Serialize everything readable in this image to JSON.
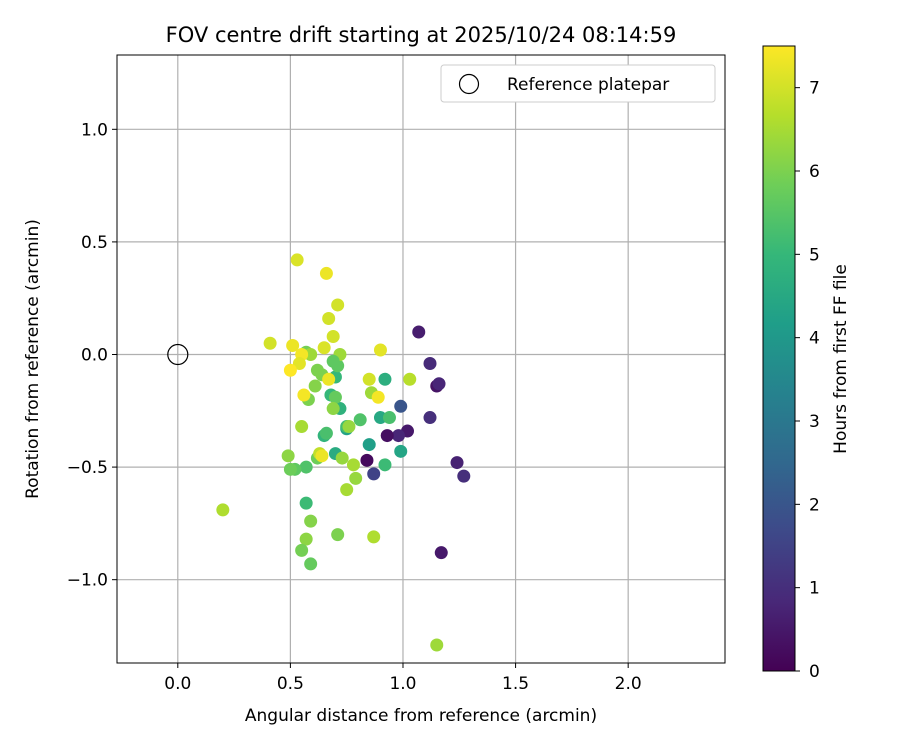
{
  "chart_data": {
    "type": "scatter",
    "title": "FOV centre drift starting at 2025/10/24 08:14:59",
    "xlabel": "Angular distance from reference (arcmin)",
    "ylabel": "Rotation from reference (arcmin)",
    "xlim": [
      -0.27,
      2.43
    ],
    "ylim": [
      -1.37,
      1.33
    ],
    "xticks": [
      0.0,
      0.5,
      1.0,
      1.5,
      2.0
    ],
    "xtick_labels": [
      "0.0",
      "0.5",
      "1.0",
      "1.5",
      "2.0"
    ],
    "yticks": [
      1.0,
      0.5,
      0.0,
      -0.5,
      -1.0
    ],
    "ytick_labels": [
      "1.0",
      "0.5",
      "0.0",
      "−0.5",
      "−1.0"
    ],
    "grid": true,
    "legend": {
      "position": "top-right",
      "entries": [
        "Reference platepar"
      ]
    },
    "reference_point": {
      "x": 0.0,
      "y": 0.0,
      "label": "Reference platepar"
    },
    "colorbar": {
      "label": "Hours from first FF file",
      "min": 0,
      "max": 7.5,
      "ticks": [
        0,
        1,
        2,
        3,
        4,
        5,
        6,
        7
      ],
      "tick_labels": [
        "0",
        "1",
        "2",
        "3",
        "4",
        "5",
        "6",
        "7"
      ],
      "colormap_stops": [
        "#440154",
        "#482878",
        "#3e4989",
        "#31688e",
        "#26828e",
        "#1f9e89",
        "#35b779",
        "#6ece58",
        "#b5de2b",
        "#fde725"
      ]
    },
    "points": [
      {
        "x": 1.07,
        "y": 0.1,
        "h": 0.6
      },
      {
        "x": 1.12,
        "y": -0.04,
        "h": 0.9
      },
      {
        "x": 1.15,
        "y": -0.14,
        "h": 0.4
      },
      {
        "x": 1.16,
        "y": -0.13,
        "h": 0.8
      },
      {
        "x": 1.12,
        "y": -0.28,
        "h": 1.0
      },
      {
        "x": 1.24,
        "y": -0.48,
        "h": 0.7
      },
      {
        "x": 1.27,
        "y": -0.54,
        "h": 1.0
      },
      {
        "x": 1.17,
        "y": -0.88,
        "h": 0.5
      },
      {
        "x": 1.02,
        "y": -0.34,
        "h": 0.5
      },
      {
        "x": 0.98,
        "y": -0.36,
        "h": 0.8
      },
      {
        "x": 0.93,
        "y": -0.36,
        "h": 0.3
      },
      {
        "x": 0.84,
        "y": -0.47,
        "h": 0.2
      },
      {
        "x": 0.87,
        "y": -0.53,
        "h": 1.5
      },
      {
        "x": 0.99,
        "y": -0.23,
        "h": 2.0
      },
      {
        "x": 0.99,
        "y": -0.43,
        "h": 4.4
      },
      {
        "x": 0.9,
        "y": -0.28,
        "h": 4.5
      },
      {
        "x": 0.92,
        "y": -0.11,
        "h": 4.7
      },
      {
        "x": 0.94,
        "y": -0.28,
        "h": 5.3
      },
      {
        "x": 0.92,
        "y": -0.49,
        "h": 5.1
      },
      {
        "x": 0.85,
        "y": -0.4,
        "h": 4.2
      },
      {
        "x": 0.81,
        "y": -0.29,
        "h": 5.4
      },
      {
        "x": 0.75,
        "y": -0.33,
        "h": 4.3
      },
      {
        "x": 0.75,
        "y": -0.32,
        "h": 5.2
      },
      {
        "x": 0.72,
        "y": -0.24,
        "h": 4.8
      },
      {
        "x": 0.7,
        "y": -0.44,
        "h": 4.6
      },
      {
        "x": 0.7,
        "y": -0.1,
        "h": 5.0
      },
      {
        "x": 0.71,
        "y": -0.05,
        "h": 5.6
      },
      {
        "x": 0.72,
        "y": 0.0,
        "h": 6.4
      },
      {
        "x": 0.69,
        "y": -0.03,
        "h": 5.6
      },
      {
        "x": 0.68,
        "y": -0.18,
        "h": 5.0
      },
      {
        "x": 0.7,
        "y": -0.19,
        "h": 5.7
      },
      {
        "x": 0.69,
        "y": -0.24,
        "h": 6.2
      },
      {
        "x": 0.65,
        "y": -0.36,
        "h": 4.9
      },
      {
        "x": 0.66,
        "y": -0.35,
        "h": 5.3
      },
      {
        "x": 0.62,
        "y": -0.46,
        "h": 5.8
      },
      {
        "x": 0.63,
        "y": -0.44,
        "h": 6.8
      },
      {
        "x": 0.57,
        "y": -0.5,
        "h": 5.4
      },
      {
        "x": 0.52,
        "y": -0.51,
        "h": 5.6
      },
      {
        "x": 0.5,
        "y": -0.51,
        "h": 5.8
      },
      {
        "x": 0.49,
        "y": -0.45,
        "h": 6.2
      },
      {
        "x": 0.57,
        "y": -0.66,
        "h": 5.1
      },
      {
        "x": 0.55,
        "y": -0.32,
        "h": 6.5
      },
      {
        "x": 0.58,
        "y": -0.2,
        "h": 6.0
      },
      {
        "x": 0.61,
        "y": -0.14,
        "h": 6.1
      },
      {
        "x": 0.62,
        "y": -0.07,
        "h": 6.0
      },
      {
        "x": 0.57,
        "y": 0.01,
        "h": 5.9
      },
      {
        "x": 0.59,
        "y": 0.0,
        "h": 6.4
      },
      {
        "x": 0.64,
        "y": -0.09,
        "h": 6.0
      },
      {
        "x": 0.76,
        "y": -0.32,
        "h": 6.3
      },
      {
        "x": 0.73,
        "y": -0.46,
        "h": 6.3
      },
      {
        "x": 0.78,
        "y": -0.49,
        "h": 6.5
      },
      {
        "x": 0.79,
        "y": -0.55,
        "h": 6.3
      },
      {
        "x": 0.75,
        "y": -0.6,
        "h": 6.5
      },
      {
        "x": 0.59,
        "y": -0.74,
        "h": 6.1
      },
      {
        "x": 0.57,
        "y": -0.82,
        "h": 6.2
      },
      {
        "x": 0.55,
        "y": -0.87,
        "h": 5.9
      },
      {
        "x": 0.59,
        "y": -0.93,
        "h": 5.7
      },
      {
        "x": 0.71,
        "y": -0.8,
        "h": 6.0
      },
      {
        "x": 0.87,
        "y": -0.81,
        "h": 6.6
      },
      {
        "x": 0.2,
        "y": -0.69,
        "h": 6.6
      },
      {
        "x": 1.15,
        "y": -1.29,
        "h": 6.4
      },
      {
        "x": 0.86,
        "y": -0.17,
        "h": 6.4
      },
      {
        "x": 1.03,
        "y": -0.11,
        "h": 6.7
      },
      {
        "x": 0.85,
        "y": -0.11,
        "h": 7.0
      },
      {
        "x": 0.89,
        "y": -0.19,
        "h": 7.4
      },
      {
        "x": 0.9,
        "y": 0.02,
        "h": 7.2
      },
      {
        "x": 0.69,
        "y": 0.08,
        "h": 7.0
      },
      {
        "x": 0.67,
        "y": -0.11,
        "h": 7.3
      },
      {
        "x": 0.65,
        "y": 0.03,
        "h": 7.1
      },
      {
        "x": 0.67,
        "y": 0.16,
        "h": 7.0
      },
      {
        "x": 0.71,
        "y": 0.22,
        "h": 7.0
      },
      {
        "x": 0.66,
        "y": 0.36,
        "h": 7.3
      },
      {
        "x": 0.53,
        "y": 0.42,
        "h": 7.1
      },
      {
        "x": 0.41,
        "y": 0.05,
        "h": 7.0
      },
      {
        "x": 0.51,
        "y": 0.04,
        "h": 7.3
      },
      {
        "x": 0.55,
        "y": 0.0,
        "h": 7.4
      },
      {
        "x": 0.54,
        "y": -0.04,
        "h": 7.2
      },
      {
        "x": 0.5,
        "y": -0.07,
        "h": 7.5
      },
      {
        "x": 0.56,
        "y": -0.18,
        "h": 7.4
      },
      {
        "x": 0.64,
        "y": -0.45,
        "h": 7.3
      }
    ]
  }
}
